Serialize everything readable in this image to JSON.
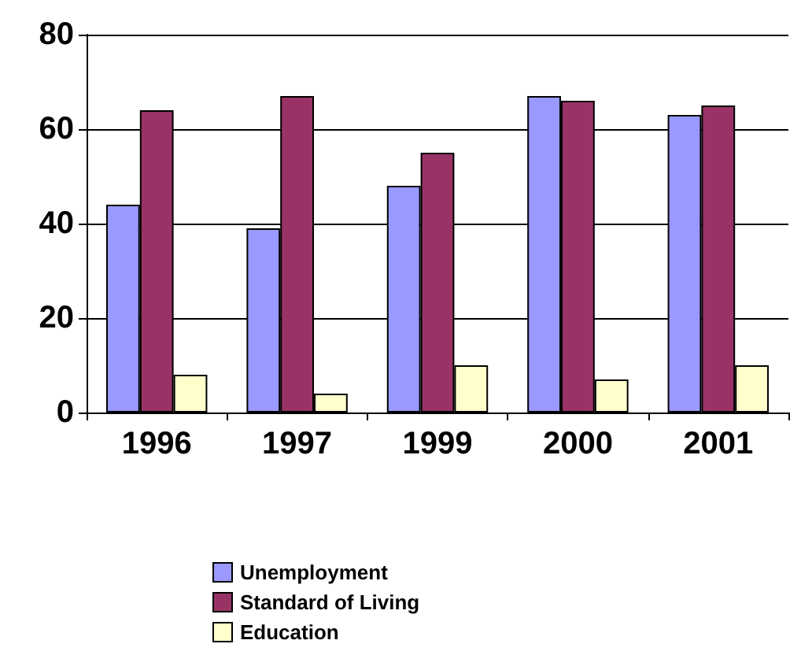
{
  "chart_data": {
    "type": "bar",
    "categories": [
      "1996",
      "1997",
      "1999",
      "2000",
      "2001"
    ],
    "series": [
      {
        "name": "Unemployment",
        "color": "#9999ff",
        "values": [
          44,
          39,
          48,
          67,
          63
        ]
      },
      {
        "name": "Standard of Living",
        "color": "#993366",
        "values": [
          64,
          67,
          55,
          66,
          65
        ]
      },
      {
        "name": "Education",
        "color": "#ffffcc",
        "values": [
          8,
          4,
          10,
          7,
          10
        ]
      }
    ],
    "ylim": [
      0,
      80
    ],
    "yticks": [
      0,
      20,
      40,
      60,
      80
    ],
    "grid": "y",
    "legend": "bottom"
  }
}
